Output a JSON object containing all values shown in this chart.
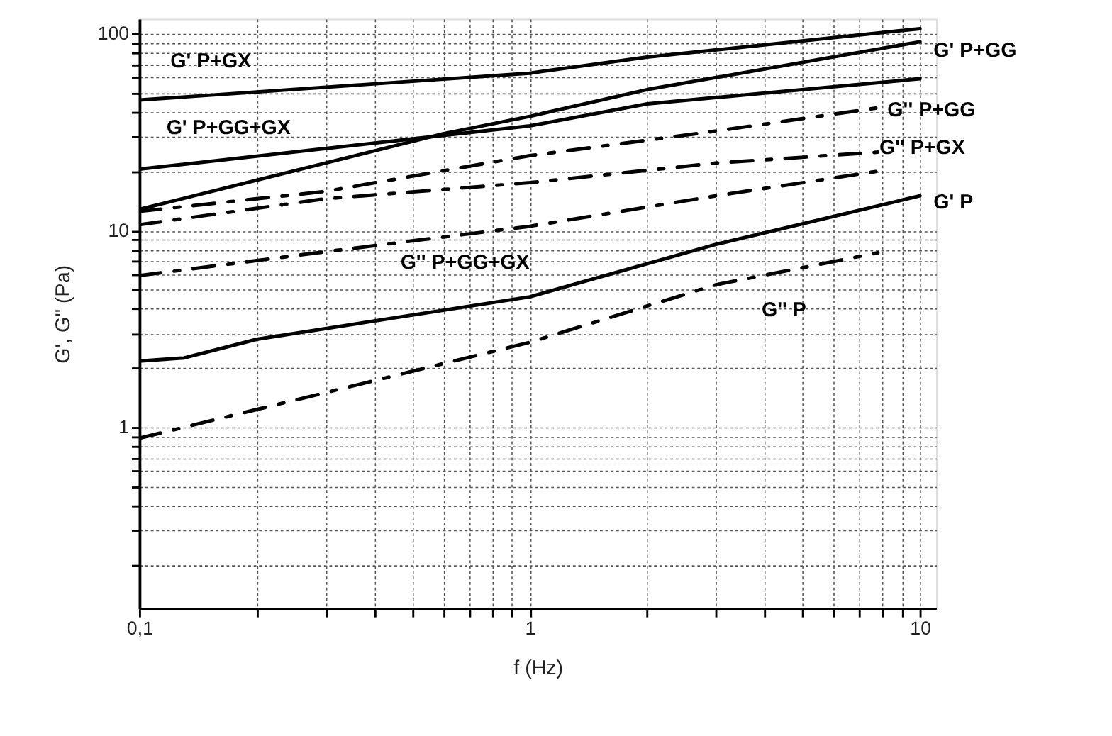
{
  "chart_data": {
    "type": "line",
    "xlabel": "f (Hz)",
    "ylabel": "G', G'' (Pa)",
    "log": "xy",
    "grid": true,
    "marker": "none",
    "xlim": [
      0.1,
      11
    ],
    "ylim": [
      0.12,
      119
    ],
    "xticks": [
      {
        "value": 0.1,
        "label": "0,1"
      },
      {
        "value": 0.2,
        "label": null
      },
      {
        "value": 0.3,
        "label": null
      },
      {
        "value": 0.4,
        "label": null
      },
      {
        "value": 0.5,
        "label": null
      },
      {
        "value": 0.6,
        "label": null
      },
      {
        "value": 0.7,
        "label": null
      },
      {
        "value": 0.8,
        "label": null
      },
      {
        "value": 0.9,
        "label": null
      },
      1,
      {
        "value": 2,
        "label": null
      },
      {
        "value": 3,
        "label": null
      },
      {
        "value": 4,
        "label": null
      },
      {
        "value": 5,
        "label": null
      },
      {
        "value": 6,
        "label": null
      },
      {
        "value": 7,
        "label": null
      },
      {
        "value": 8,
        "label": null
      },
      {
        "value": 9,
        "label": null
      },
      10
    ],
    "yticks": [
      {
        "value": 0.2,
        "label": null
      },
      {
        "value": 0.3,
        "label": null
      },
      {
        "value": 0.4,
        "label": null
      },
      {
        "value": 0.5,
        "label": null
      },
      {
        "value": 0.6,
        "label": null
      },
      {
        "value": 0.7,
        "label": null
      },
      {
        "value": 0.8,
        "label": null
      },
      {
        "value": 0.9,
        "label": null
      },
      1,
      {
        "value": 2,
        "label": null
      },
      {
        "value": 3,
        "label": null
      },
      {
        "value": 4,
        "label": null
      },
      {
        "value": 5,
        "label": null
      },
      {
        "value": 6,
        "label": null
      },
      {
        "value": 7,
        "label": null
      },
      {
        "value": 8,
        "label": null
      },
      {
        "value": 9,
        "label": null
      },
      10,
      {
        "value": 20,
        "label": null
      },
      {
        "value": 30,
        "label": null
      },
      {
        "value": 40,
        "label": null
      },
      {
        "value": 50,
        "label": null
      },
      {
        "value": 60,
        "label": null
      },
      {
        "value": 70,
        "label": null
      },
      {
        "value": 80,
        "label": null
      },
      {
        "value": 90,
        "label": null
      },
      100
    ],
    "series": [
      {
        "color": "#000000",
        "line_style": "solid",
        "x": [
          0.1,
          1,
          2,
          10
        ],
        "values": [
          46,
          63,
          76,
          106
        ]
      },
      {
        "color": "#000000",
        "line_style": "solid",
        "x": [
          0.1,
          0.6,
          1,
          2,
          10
        ],
        "values": [
          12.8,
          31,
          38,
          52,
          91
        ]
      },
      {
        "color": "#000000",
        "line_style": "solid",
        "x": [
          0.1,
          1,
          2,
          10
        ],
        "values": [
          20.5,
          34,
          44,
          59
        ]
      },
      {
        "color": "#000000",
        "line_style": "solid",
        "x": [
          0.1,
          0.13,
          0.2,
          1,
          3,
          10
        ],
        "values": [
          2.17,
          2.25,
          2.8,
          4.6,
          8.5,
          15
        ]
      },
      {
        "color": "#000000",
        "line_style": "dashed",
        "x": [
          0.1,
          0.3,
          1,
          3,
          7.8
        ],
        "values": [
          12.5,
          15.8,
          24,
          32,
          42
        ]
      },
      {
        "color": "#000000",
        "line_style": "dashed",
        "x": [
          0.1,
          0.3,
          1,
          3,
          7.8
        ],
        "values": [
          10.7,
          14.5,
          17.5,
          22,
          25
        ]
      },
      {
        "color": "#000000",
        "line_style": "dashed",
        "x": [
          0.1,
          0.3,
          1,
          3,
          7.8
        ],
        "values": [
          5.9,
          7.8,
          10.5,
          15,
          20
        ]
      },
      {
        "color": "#000000",
        "line_style": "dashed",
        "x": [
          0.1,
          0.3,
          1,
          3,
          7.8
        ],
        "values": [
          0.88,
          1.5,
          2.7,
          5.3,
          7.7
        ]
      }
    ],
    "annotations": [
      "G' P+GX",
      "G' P+GG+GX",
      "G' P+GG",
      "G'' P+GG",
      "G'' P+GX",
      "G' P",
      "G'' P+GG+GX",
      "G'' P"
    ]
  }
}
